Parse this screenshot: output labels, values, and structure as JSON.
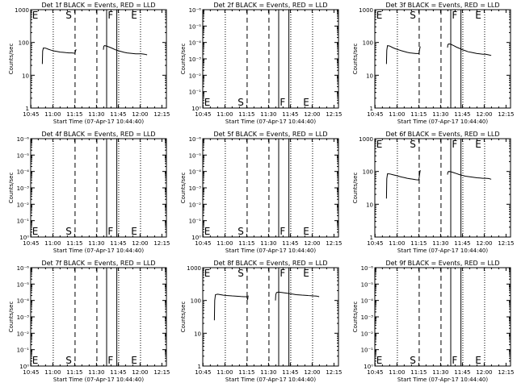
{
  "chart_data": [
    {
      "type": "line",
      "title": "Det 1f BLACK = Events, RED = LLD",
      "xlabel": "Start Time (07-Apr-17 10:44:40)",
      "ylabel": "Counts/sec",
      "xlim": [
        -0.2,
        93.1
      ],
      "y_log": true,
      "ylim": [
        1,
        1000
      ],
      "x_ticks": [
        "10:45",
        "11:00",
        "11:15",
        "11:30",
        "11:45",
        "12:00",
        "12:15"
      ],
      "y_ticks": [
        "1",
        "10",
        "100",
        "1000"
      ],
      "lines": [
        {
          "x": 15.3,
          "style": "dotted"
        },
        {
          "x": 30.3,
          "style": "dashed"
        },
        {
          "x": 45.3,
          "style": "dashed"
        },
        {
          "x": 60.3,
          "style": "dotted"
        },
        {
          "x": 75.3,
          "style": "dotted"
        }
      ],
      "solid_lines": [
        {
          "x": 52.0
        },
        {
          "x": 59.0
        }
      ],
      "markers": [
        {
          "label": "E",
          "x": 0.8,
          "pos": "top"
        },
        {
          "label": "S",
          "x": 23.8,
          "pos": "top"
        },
        {
          "label": "F",
          "x": 52.8,
          "pos": "top"
        },
        {
          "label": "E",
          "x": 68.8,
          "pos": "top"
        }
      ],
      "series": [
        {
          "x": [
            7.8,
            8.0,
            8.5,
            10,
            12,
            14,
            16,
            18,
            20,
            22,
            24,
            26,
            28,
            30,
            30.3,
            30.6,
            31.0
          ],
          "y": [
            22,
            55,
            68,
            67,
            62,
            58,
            55,
            53,
            51,
            50,
            49,
            48,
            48,
            47,
            48,
            55,
            62
          ]
        },
        {
          "x": [
            49.8,
            50.0,
            50.5,
            52,
            54,
            56,
            58,
            60,
            62,
            64,
            66,
            68,
            70,
            72,
            74,
            76,
            78,
            79.8
          ],
          "y": [
            60,
            75,
            80,
            78,
            72,
            66,
            60,
            56,
            53,
            50,
            48,
            47,
            46,
            45,
            45,
            45,
            44,
            42
          ]
        }
      ]
    },
    {
      "type": "line",
      "title": "Det 2f BLACK = Events, RED = LLD",
      "xlabel": "Start Time (07-Apr-17 10:44:40)",
      "ylabel": "Counts/sec",
      "xlim": [
        -0.2,
        93.1
      ],
      "y_log": true,
      "ylim": [
        1,
        1000000
      ],
      "x_ticks": [
        "10:45",
        "11:00",
        "11:15",
        "11:30",
        "11:45",
        "12:00",
        "12:15"
      ],
      "y_ticks": [
        "10⁰",
        "10⁻¹",
        "10⁻²",
        "10⁻³",
        "10⁻⁴",
        "10⁻⁵",
        "10⁻⁶"
      ],
      "lines": [
        {
          "x": 15.3,
          "style": "dotted"
        },
        {
          "x": 30.3,
          "style": "dashed"
        },
        {
          "x": 45.3,
          "style": "dashed"
        },
        {
          "x": 60.3,
          "style": "dotted"
        },
        {
          "x": 75.3,
          "style": "dotted"
        }
      ],
      "solid_lines": [
        {
          "x": 52.0
        },
        {
          "x": 59.0
        }
      ],
      "markers": [
        {
          "label": "E",
          "x": 0.8,
          "pos": "bottom"
        },
        {
          "label": "S",
          "x": 23.8,
          "pos": "bottom"
        },
        {
          "label": "F",
          "x": 52.8,
          "pos": "bottom"
        },
        {
          "label": "E",
          "x": 68.8,
          "pos": "bottom"
        }
      ],
      "series": []
    },
    {
      "type": "line",
      "title": "Det 3f BLACK = Events, RED = LLD",
      "xlabel": "Start Time (07-Apr-17 10:44:40)",
      "ylabel": "Counts/sec",
      "xlim": [
        -0.2,
        93.1
      ],
      "y_log": true,
      "ylim": [
        1,
        1000
      ],
      "x_ticks": [
        "10:45",
        "11:00",
        "11:15",
        "11:30",
        "11:45",
        "12:00",
        "12:15"
      ],
      "y_ticks": [
        "1",
        "10",
        "100",
        "1000"
      ],
      "lines": [
        {
          "x": 15.3,
          "style": "dotted"
        },
        {
          "x": 30.3,
          "style": "dashed"
        },
        {
          "x": 45.3,
          "style": "dashed"
        },
        {
          "x": 60.3,
          "style": "dotted"
        },
        {
          "x": 75.3,
          "style": "dotted"
        }
      ],
      "solid_lines": [
        {
          "x": 52.0
        },
        {
          "x": 59.0
        }
      ],
      "markers": [
        {
          "label": "E",
          "x": 0.8,
          "pos": "top"
        },
        {
          "label": "S",
          "x": 23.8,
          "pos": "top"
        },
        {
          "label": "F",
          "x": 52.8,
          "pos": "top"
        },
        {
          "label": "E",
          "x": 68.8,
          "pos": "top"
        }
      ],
      "series": [
        {
          "x": [
            7.8,
            8.0,
            8.5,
            10,
            12,
            14,
            16,
            18,
            20,
            22,
            24,
            26,
            28,
            30,
            30.3,
            30.6,
            31.0
          ],
          "y": [
            22,
            58,
            80,
            78,
            70,
            64,
            60,
            56,
            53,
            50,
            48,
            47,
            46,
            46,
            50,
            62,
            75
          ]
        },
        {
          "x": [
            49.8,
            50.0,
            50.5,
            52,
            54,
            56,
            58,
            60,
            62,
            64,
            66,
            68,
            70,
            72,
            74,
            76,
            78,
            79.8
          ],
          "y": [
            70,
            85,
            90,
            88,
            80,
            72,
            66,
            60,
            56,
            52,
            50,
            48,
            46,
            45,
            44,
            44,
            42,
            40
          ]
        }
      ]
    },
    {
      "type": "line",
      "title": "Det 4f BLACK = Events, RED = LLD",
      "xlabel": "Start Time (07-Apr-17 10:44:40)",
      "ylabel": "Counts/sec",
      "xlim": [
        -0.2,
        93.1
      ],
      "y_log": true,
      "ylim": [
        1,
        1000000
      ],
      "x_ticks": [
        "10:45",
        "11:00",
        "11:15",
        "11:30",
        "11:45",
        "12:00",
        "12:15"
      ],
      "y_ticks": [
        "10⁰",
        "10⁻¹",
        "10⁻²",
        "10⁻³",
        "10⁻⁴",
        "10⁻⁵",
        "10⁻⁶"
      ],
      "lines": [
        {
          "x": 15.3,
          "style": "dotted"
        },
        {
          "x": 30.3,
          "style": "dashed"
        },
        {
          "x": 45.3,
          "style": "dashed"
        },
        {
          "x": 60.3,
          "style": "dotted"
        },
        {
          "x": 75.3,
          "style": "dotted"
        }
      ],
      "solid_lines": [
        {
          "x": 52.0
        },
        {
          "x": 59.0
        }
      ],
      "markers": [
        {
          "label": "E",
          "x": 0.8,
          "pos": "bottom"
        },
        {
          "label": "S",
          "x": 23.8,
          "pos": "bottom"
        },
        {
          "label": "F",
          "x": 52.8,
          "pos": "bottom"
        },
        {
          "label": "E",
          "x": 68.8,
          "pos": "bottom"
        }
      ],
      "series": []
    },
    {
      "type": "line",
      "title": "Det 5f BLACK = Events, RED = LLD",
      "xlabel": "Start Time (07-Apr-17 10:44:40)",
      "ylabel": "Counts/sec",
      "xlim": [
        -0.2,
        93.1
      ],
      "y_log": true,
      "ylim": [
        1,
        1000000
      ],
      "x_ticks": [
        "10:45",
        "11:00",
        "11:15",
        "11:30",
        "11:45",
        "12:00",
        "12:15"
      ],
      "y_ticks": [
        "10⁰",
        "10⁻¹",
        "10⁻²",
        "10⁻³",
        "10⁻⁴",
        "10⁻⁵",
        "10⁻⁶"
      ],
      "lines": [
        {
          "x": 15.3,
          "style": "dotted"
        },
        {
          "x": 30.3,
          "style": "dashed"
        },
        {
          "x": 45.3,
          "style": "dashed"
        },
        {
          "x": 60.3,
          "style": "dotted"
        },
        {
          "x": 75.3,
          "style": "dotted"
        }
      ],
      "solid_lines": [
        {
          "x": 52.0
        },
        {
          "x": 59.0
        }
      ],
      "markers": [
        {
          "label": "E",
          "x": 0.8,
          "pos": "bottom"
        },
        {
          "label": "S",
          "x": 23.8,
          "pos": "bottom"
        },
        {
          "label": "F",
          "x": 52.8,
          "pos": "bottom"
        },
        {
          "label": "E",
          "x": 68.8,
          "pos": "bottom"
        }
      ],
      "series": []
    },
    {
      "type": "line",
      "title": "Det 6f BLACK = Events, RED = LLD",
      "xlabel": "Start Time (07-Apr-17 10:44:40)",
      "ylabel": "Counts/sec",
      "xlim": [
        -0.2,
        93.1
      ],
      "y_log": true,
      "ylim": [
        1,
        1000
      ],
      "x_ticks": [
        "10:45",
        "11:00",
        "11:15",
        "11:30",
        "11:45",
        "12:00",
        "12:15"
      ],
      "y_ticks": [
        "1",
        "10",
        "100",
        "1000"
      ],
      "lines": [
        {
          "x": 15.3,
          "style": "dotted"
        },
        {
          "x": 30.3,
          "style": "dashed"
        },
        {
          "x": 45.3,
          "style": "dashed"
        },
        {
          "x": 60.3,
          "style": "dotted"
        },
        {
          "x": 75.3,
          "style": "dotted"
        }
      ],
      "solid_lines": [
        {
          "x": 52.0
        },
        {
          "x": 59.0
        }
      ],
      "markers": [
        {
          "label": "E",
          "x": 0.8,
          "pos": "top"
        },
        {
          "label": "S",
          "x": 23.8,
          "pos": "top"
        },
        {
          "label": "F",
          "x": 52.8,
          "pos": "top"
        },
        {
          "label": "E",
          "x": 68.8,
          "pos": "top"
        }
      ],
      "series": [
        {
          "x": [
            7.8,
            8.0,
            8.5,
            10,
            12,
            14,
            16,
            18,
            20,
            22,
            24,
            26,
            28,
            30,
            30.3,
            30.6,
            31.0
          ],
          "y": [
            15,
            60,
            85,
            84,
            80,
            76,
            72,
            68,
            65,
            62,
            60,
            58,
            56,
            55,
            65,
            85,
            110
          ]
        },
        {
          "x": [
            49.8,
            50.0,
            50.5,
            52,
            54,
            56,
            58,
            60,
            62,
            64,
            66,
            68,
            70,
            72,
            74,
            76,
            78,
            79.8
          ],
          "y": [
            80,
            95,
            100,
            98,
            92,
            86,
            80,
            76,
            72,
            70,
            68,
            66,
            64,
            63,
            62,
            62,
            61,
            58
          ]
        }
      ]
    },
    {
      "type": "line",
      "title": "Det 7f BLACK = Events, RED = LLD",
      "xlabel": "Start Time (07-Apr-17 10:44:40)",
      "ylabel": "Counts/sec",
      "xlim": [
        -0.2,
        93.1
      ],
      "y_log": true,
      "ylim": [
        1,
        1000000
      ],
      "x_ticks": [
        "10:45",
        "11:00",
        "11:15",
        "11:30",
        "11:45",
        "12:00",
        "12:15"
      ],
      "y_ticks": [
        "10⁰",
        "10⁻¹",
        "10⁻²",
        "10⁻³",
        "10⁻⁴",
        "10⁻⁵",
        "10⁻⁶"
      ],
      "lines": [
        {
          "x": 15.3,
          "style": "dotted"
        },
        {
          "x": 30.3,
          "style": "dashed"
        },
        {
          "x": 45.3,
          "style": "dashed"
        },
        {
          "x": 60.3,
          "style": "dotted"
        },
        {
          "x": 75.3,
          "style": "dotted"
        }
      ],
      "solid_lines": [
        {
          "x": 52.0
        },
        {
          "x": 59.0
        }
      ],
      "markers": [
        {
          "label": "E",
          "x": 0.8,
          "pos": "bottom"
        },
        {
          "label": "S",
          "x": 23.8,
          "pos": "bottom"
        },
        {
          "label": "F",
          "x": 52.8,
          "pos": "bottom"
        },
        {
          "label": "E",
          "x": 68.8,
          "pos": "bottom"
        }
      ],
      "series": []
    },
    {
      "type": "line",
      "title": "Det 8f BLACK = Events, RED = LLD",
      "xlabel": "Start Time (07-Apr-17 10:44:40)",
      "ylabel": "Counts/sec",
      "xlim": [
        -0.2,
        93.1
      ],
      "y_log": true,
      "ylim": [
        1,
        1000
      ],
      "x_ticks": [
        "10:45",
        "11:00",
        "11:15",
        "11:30",
        "11:45",
        "12:00",
        "12:15"
      ],
      "y_ticks": [
        "1",
        "10",
        "100",
        "1000"
      ],
      "lines": [
        {
          "x": 15.3,
          "style": "dotted"
        },
        {
          "x": 30.3,
          "style": "dashed"
        },
        {
          "x": 45.3,
          "style": "dashed"
        },
        {
          "x": 60.3,
          "style": "dotted"
        },
        {
          "x": 75.3,
          "style": "dotted"
        }
      ],
      "solid_lines": [
        {
          "x": 52.0
        },
        {
          "x": 59.0
        }
      ],
      "markers": [
        {
          "label": "E",
          "x": 0.8,
          "pos": "top"
        },
        {
          "label": "S",
          "x": 23.8,
          "pos": "top"
        },
        {
          "label": "F",
          "x": 52.8,
          "pos": "top"
        },
        {
          "label": "E",
          "x": 68.8,
          "pos": "top"
        }
      ],
      "series": [
        {
          "x": [
            7.8,
            8.0,
            8.5,
            10,
            12,
            14,
            16,
            18,
            20,
            22,
            24,
            26,
            28,
            30,
            30.3,
            30.6,
            31.0
          ],
          "y": [
            25,
            100,
            150,
            155,
            150,
            145,
            142,
            140,
            138,
            136,
            134,
            132,
            130,
            130,
            120,
            105,
            140
          ]
        },
        {
          "x": [
            49.8,
            50.0,
            50.5,
            52,
            54,
            56,
            58,
            60,
            62,
            64,
            66,
            68,
            70,
            72,
            74,
            76,
            78,
            79.8
          ],
          "y": [
            100,
            150,
            175,
            180,
            175,
            170,
            165,
            160,
            155,
            150,
            148,
            146,
            144,
            142,
            140,
            138,
            136,
            130
          ]
        }
      ]
    },
    {
      "type": "line",
      "title": "Det 9f BLACK = Events, RED = LLD",
      "xlabel": "Start Time (07-Apr-17 10:44:40)",
      "ylabel": "Counts/sec",
      "xlim": [
        -0.2,
        93.1
      ],
      "y_log": true,
      "ylim": [
        1,
        1000000
      ],
      "x_ticks": [
        "10:45",
        "11:00",
        "11:15",
        "11:30",
        "11:45",
        "12:00",
        "12:15"
      ],
      "y_ticks": [
        "10⁰",
        "10⁻¹",
        "10⁻²",
        "10⁻³",
        "10⁻⁴",
        "10⁻⁵",
        "10⁻⁶"
      ],
      "lines": [
        {
          "x": 15.3,
          "style": "dotted"
        },
        {
          "x": 30.3,
          "style": "dashed"
        },
        {
          "x": 45.3,
          "style": "dashed"
        },
        {
          "x": 60.3,
          "style": "dotted"
        },
        {
          "x": 75.3,
          "style": "dotted"
        }
      ],
      "solid_lines": [
        {
          "x": 52.0
        },
        {
          "x": 59.0
        }
      ],
      "markers": [
        {
          "label": "E",
          "x": 0.8,
          "pos": "bottom"
        },
        {
          "label": "S",
          "x": 23.8,
          "pos": "bottom"
        },
        {
          "label": "F",
          "x": 52.8,
          "pos": "bottom"
        },
        {
          "label": "E",
          "x": 68.8,
          "pos": "bottom"
        }
      ],
      "series": []
    }
  ]
}
